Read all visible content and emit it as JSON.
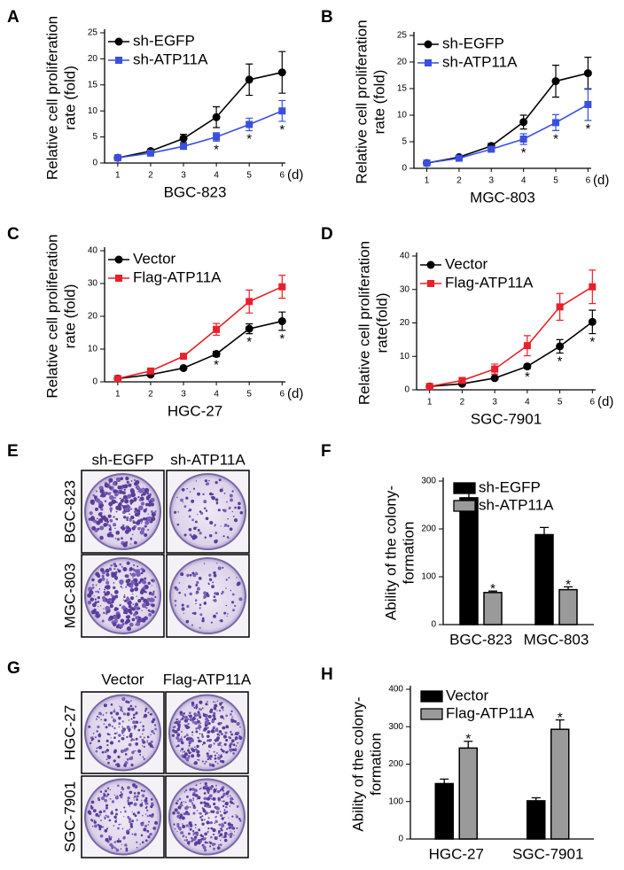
{
  "chart_data": [
    {
      "type": "line",
      "label": "A",
      "xlabel": "BGC-823",
      "x_unit": "(d)",
      "ylabel": [
        "Relative cell proliferation",
        "rate (fold)"
      ],
      "x": [
        1,
        2,
        3,
        4,
        5,
        6
      ],
      "xlim": [
        0.6,
        6.1
      ],
      "xticks": [
        1,
        2,
        3,
        4,
        5,
        6
      ],
      "ylim": [
        0,
        25
      ],
      "yticks": [
        0,
        5,
        10,
        15,
        20,
        25
      ],
      "legend": "top-left",
      "series": [
        {
          "name": "sh-EGFP",
          "color": "#000000",
          "marker": "circle",
          "values": [
            1,
            2.3,
            4.7,
            8.8,
            16,
            17.4
          ],
          "errors": [
            0.2,
            0.3,
            0.8,
            2,
            3,
            4
          ]
        },
        {
          "name": "sh-ATP11A",
          "color": "#3a4fe0",
          "marker": "square",
          "values": [
            1,
            1.9,
            3.2,
            5,
            7.4,
            10
          ],
          "errors": [
            0.1,
            0.2,
            0.4,
            0.8,
            1.2,
            2
          ]
        }
      ],
      "annotations": [
        {
          "x": 4,
          "text": "*"
        },
        {
          "x": 5,
          "text": "*"
        },
        {
          "x": 6,
          "text": "*"
        }
      ]
    },
    {
      "type": "line",
      "label": "B",
      "xlabel": "MGC-803",
      "x_unit": "(d)",
      "ylabel": [
        "Relative cell proliferation",
        "rate (fold)"
      ],
      "x": [
        1,
        2,
        3,
        4,
        5,
        6
      ],
      "xlim": [
        0.6,
        6.1
      ],
      "xticks": [
        1,
        2,
        3,
        4,
        5,
        6
      ],
      "ylim": [
        0,
        25
      ],
      "yticks": [
        0,
        5,
        10,
        15,
        20,
        25
      ],
      "legend": "top-left",
      "series": [
        {
          "name": "sh-EGFP",
          "color": "#000000",
          "marker": "circle",
          "values": [
            1,
            2.1,
            4.2,
            8.7,
            16.4,
            17.9
          ],
          "errors": [
            0.2,
            0.3,
            0.5,
            1.3,
            3,
            3
          ]
        },
        {
          "name": "sh-ATP11A",
          "color": "#3a4fe0",
          "marker": "square",
          "values": [
            1,
            1.9,
            3.6,
            5.5,
            8.6,
            12
          ],
          "errors": [
            0.1,
            0.2,
            0.3,
            1,
            1.5,
            3
          ]
        }
      ],
      "annotations": [
        {
          "x": 4,
          "text": "*"
        },
        {
          "x": 5,
          "text": "*"
        },
        {
          "x": 6,
          "text": "*"
        }
      ]
    },
    {
      "type": "line",
      "label": "C",
      "xlabel": "HGC-27",
      "x_unit": "(d)",
      "ylabel": [
        "Relative cell proliferation",
        "rate (fold)"
      ],
      "x": [
        1,
        2,
        3,
        4,
        5,
        6
      ],
      "xlim": [
        0.6,
        6.1
      ],
      "xticks": [
        1,
        2,
        3,
        4,
        5,
        6
      ],
      "ylim": [
        0,
        40
      ],
      "yticks": [
        0,
        10,
        20,
        30,
        40
      ],
      "legend": "top-left",
      "series": [
        {
          "name": "Vector",
          "color": "#000000",
          "marker": "circle",
          "values": [
            1,
            2.2,
            4.2,
            8.5,
            16.2,
            18.5
          ],
          "errors": [
            0.2,
            0.3,
            0.4,
            0.8,
            1.5,
            2.8
          ]
        },
        {
          "name": "Flag-ATP11A",
          "color": "#e8202a",
          "marker": "square",
          "values": [
            1,
            3.3,
            7.8,
            16,
            24.5,
            29
          ],
          "errors": [
            0.2,
            0.4,
            0.6,
            1.8,
            3.5,
            3.5
          ]
        }
      ],
      "annotations": [
        {
          "x": 4,
          "text": "*"
        },
        {
          "x": 5,
          "text": "*"
        },
        {
          "x": 6,
          "text": "*"
        }
      ]
    },
    {
      "type": "line",
      "label": "D",
      "xlabel": "SGC-7901",
      "x_unit": "(d)",
      "ylabel": [
        "Relative cell proliferation",
        "rate(fold)"
      ],
      "x": [
        1,
        2,
        3,
        4,
        5,
        6
      ],
      "xlim": [
        0.6,
        6.1
      ],
      "xticks": [
        1,
        2,
        3,
        4,
        5,
        6
      ],
      "ylim": [
        0,
        40
      ],
      "yticks": [
        0,
        10,
        20,
        30,
        40
      ],
      "legend": "top-left",
      "series": [
        {
          "name": "Vector",
          "color": "#000000",
          "marker": "circle",
          "values": [
            1,
            1.8,
            3.5,
            7,
            13,
            20.3
          ],
          "errors": [
            0.2,
            0.3,
            0.4,
            0.6,
            2,
            3.5
          ]
        },
        {
          "name": "Flag-ATP11A",
          "color": "#e8202a",
          "marker": "square",
          "values": [
            1,
            2.8,
            6.2,
            13.2,
            24.8,
            30.8
          ],
          "errors": [
            0.2,
            0.5,
            1.5,
            3,
            4,
            5
          ]
        }
      ],
      "annotations": [
        {
          "x": 4,
          "text": "*"
        },
        {
          "x": 5,
          "text": "*"
        },
        {
          "x": 6,
          "text": "*"
        }
      ]
    },
    {
      "type": "bar",
      "label": "F",
      "ylabel": [
        "Ability of the colony-",
        "formation"
      ],
      "categories": [
        "BGC-823",
        "MGC-803"
      ],
      "ylim": [
        0,
        300
      ],
      "yticks": [
        0,
        100,
        200,
        300
      ],
      "legend": "top-left",
      "series": [
        {
          "name": "sh-EGFP",
          "color": "#000000",
          "values": [
            265,
            188
          ],
          "errors": [
            20,
            15
          ]
        },
        {
          "name": "sh-ATP11A",
          "color": "#9a9a9a",
          "values": [
            67,
            73
          ],
          "errors": [
            3,
            6
          ]
        }
      ],
      "annotations": [
        {
          "category": "BGC-823",
          "text": "*"
        },
        {
          "category": "MGC-803",
          "text": "*"
        }
      ]
    },
    {
      "type": "bar",
      "label": "H",
      "ylabel": [
        "Ability of the colony-",
        "formation"
      ],
      "categories": [
        "HGC-27",
        "SGC-7901"
      ],
      "ylim": [
        0,
        400
      ],
      "yticks": [
        0,
        100,
        200,
        300,
        400
      ],
      "legend": "top-left",
      "series": [
        {
          "name": "Vector",
          "color": "#000000",
          "values": [
            148,
            102
          ],
          "errors": [
            12,
            8
          ]
        },
        {
          "name": "Flag-ATP11A",
          "color": "#9a9a9a",
          "values": [
            243,
            293
          ],
          "errors": [
            18,
            25
          ]
        }
      ],
      "annotations": [
        {
          "category": "HGC-27",
          "text": "*"
        },
        {
          "category": "SGC-7901",
          "text": "*"
        }
      ]
    }
  ],
  "images": [
    {
      "label": "E",
      "columns": [
        "sh-EGFP",
        "sh-ATP11A"
      ],
      "rows": [
        "BGC-823",
        "MGC-803"
      ]
    },
    {
      "label": "G",
      "columns": [
        "Vector",
        "Flag-ATP11A"
      ],
      "rows": [
        "HGC-27",
        "SGC-7901"
      ]
    }
  ]
}
